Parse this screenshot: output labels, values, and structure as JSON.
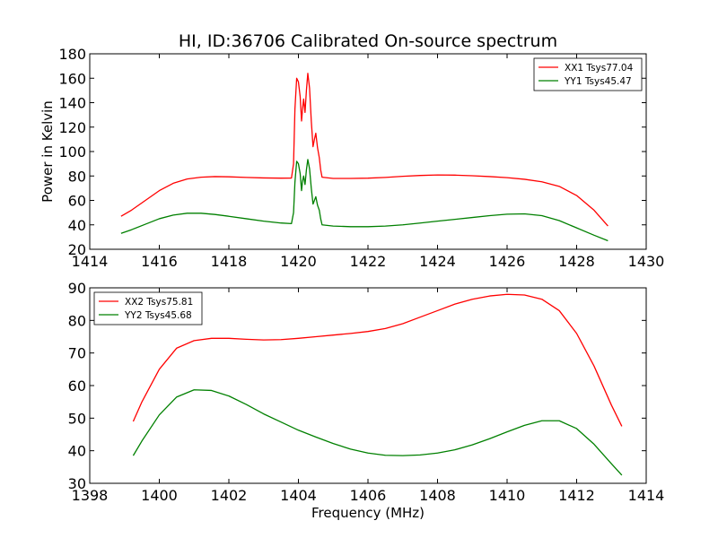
{
  "chart_data": [
    {
      "type": "line",
      "title": "HI, ID:36706 Calibrated On-source spectrum",
      "xlabel": "",
      "ylabel": "Power in Kelvin",
      "xlim": [
        1414,
        1430
      ],
      "ylim": [
        20,
        180
      ],
      "xticks": [
        1414,
        1416,
        1418,
        1420,
        1422,
        1424,
        1426,
        1428,
        1430
      ],
      "yticks": [
        20,
        40,
        60,
        80,
        100,
        120,
        140,
        160,
        180
      ],
      "legend_position": "top-right",
      "grid": false,
      "series": [
        {
          "name": "XX1 Tsys77.04",
          "color": "#ff0000",
          "points": [
            [
              1414.9,
              47
            ],
            [
              1415.2,
              52
            ],
            [
              1415.6,
              60
            ],
            [
              1416.0,
              68
            ],
            [
              1416.4,
              74
            ],
            [
              1416.8,
              77.5
            ],
            [
              1417.2,
              79
            ],
            [
              1417.6,
              79.5
            ],
            [
              1418.0,
              79.3
            ],
            [
              1418.5,
              78.8
            ],
            [
              1419.0,
              78.4
            ],
            [
              1419.5,
              78.2
            ],
            [
              1419.8,
              78.3
            ],
            [
              1419.86,
              90
            ],
            [
              1419.9,
              135
            ],
            [
              1419.95,
              160
            ],
            [
              1420.0,
              157
            ],
            [
              1420.05,
              145
            ],
            [
              1420.09,
              125
            ],
            [
              1420.12,
              135
            ],
            [
              1420.15,
              143
            ],
            [
              1420.19,
              132
            ],
            [
              1420.23,
              150
            ],
            [
              1420.27,
              164
            ],
            [
              1420.32,
              152
            ],
            [
              1420.37,
              125
            ],
            [
              1420.42,
              104
            ],
            [
              1420.46,
              110
            ],
            [
              1420.5,
              115
            ],
            [
              1420.55,
              103
            ],
            [
              1420.6,
              95
            ],
            [
              1420.64,
              85
            ],
            [
              1420.68,
              79
            ],
            [
              1421.0,
              78
            ],
            [
              1421.5,
              78
            ],
            [
              1422.0,
              78.2
            ],
            [
              1422.5,
              78.8
            ],
            [
              1423.0,
              79.7
            ],
            [
              1423.5,
              80.4
            ],
            [
              1424.0,
              80.8
            ],
            [
              1424.5,
              80.7
            ],
            [
              1425.0,
              80.2
            ],
            [
              1425.5,
              79.5
            ],
            [
              1426.0,
              78.6
            ],
            [
              1426.5,
              77.3
            ],
            [
              1427.0,
              75.2
            ],
            [
              1427.5,
              71.5
            ],
            [
              1428.0,
              64
            ],
            [
              1428.5,
              52
            ],
            [
              1428.9,
              39
            ]
          ]
        },
        {
          "name": "YY1 Tsys45.47",
          "color": "#008000",
          "points": [
            [
              1414.9,
              33
            ],
            [
              1415.2,
              36
            ],
            [
              1415.6,
              40.5
            ],
            [
              1416.0,
              45
            ],
            [
              1416.4,
              48
            ],
            [
              1416.8,
              49.5
            ],
            [
              1417.2,
              49.5
            ],
            [
              1417.6,
              48.5
            ],
            [
              1418.0,
              47
            ],
            [
              1418.5,
              45
            ],
            [
              1419.0,
              43
            ],
            [
              1419.5,
              41.5
            ],
            [
              1419.8,
              41
            ],
            [
              1419.86,
              50
            ],
            [
              1419.9,
              75
            ],
            [
              1419.95,
              92
            ],
            [
              1420.0,
              90
            ],
            [
              1420.05,
              82
            ],
            [
              1420.09,
              68
            ],
            [
              1420.12,
              76
            ],
            [
              1420.15,
              80
            ],
            [
              1420.19,
              73
            ],
            [
              1420.23,
              85
            ],
            [
              1420.27,
              93.5
            ],
            [
              1420.32,
              86
            ],
            [
              1420.37,
              70
            ],
            [
              1420.42,
              57
            ],
            [
              1420.46,
              60
            ],
            [
              1420.5,
              63
            ],
            [
              1420.55,
              56
            ],
            [
              1420.6,
              52
            ],
            [
              1420.64,
              45
            ],
            [
              1420.68,
              40
            ],
            [
              1421.0,
              39
            ],
            [
              1421.5,
              38.5
            ],
            [
              1422.0,
              38.5
            ],
            [
              1422.5,
              39
            ],
            [
              1423.0,
              40
            ],
            [
              1423.5,
              41.5
            ],
            [
              1424.0,
              43
            ],
            [
              1424.5,
              44.5
            ],
            [
              1425.0,
              46
            ],
            [
              1425.5,
              47.5
            ],
            [
              1426.0,
              48.7
            ],
            [
              1426.5,
              49
            ],
            [
              1427.0,
              47.5
            ],
            [
              1427.5,
              43.5
            ],
            [
              1428.0,
              37.5
            ],
            [
              1428.5,
              31.5
            ],
            [
              1428.9,
              27
            ]
          ]
        }
      ]
    },
    {
      "type": "line",
      "title": "",
      "xlabel": "Frequency (MHz)",
      "ylabel": "",
      "xlim": [
        1398,
        1414
      ],
      "ylim": [
        30,
        90
      ],
      "xticks": [
        1398,
        1400,
        1402,
        1404,
        1406,
        1408,
        1410,
        1412,
        1414
      ],
      "yticks": [
        30,
        40,
        50,
        60,
        70,
        80,
        90
      ],
      "legend_position": "top-left",
      "grid": false,
      "series": [
        {
          "name": "XX2 Tsys75.81",
          "color": "#ff0000",
          "points": [
            [
              1399.25,
              49
            ],
            [
              1399.5,
              55
            ],
            [
              1400.0,
              65
            ],
            [
              1400.5,
              71.5
            ],
            [
              1401.0,
              73.8
            ],
            [
              1401.5,
              74.5
            ],
            [
              1402.0,
              74.5
            ],
            [
              1402.5,
              74.2
            ],
            [
              1403.0,
              74
            ],
            [
              1403.5,
              74.1
            ],
            [
              1404.0,
              74.5
            ],
            [
              1404.5,
              75
            ],
            [
              1405.0,
              75.5
            ],
            [
              1405.5,
              76
            ],
            [
              1406.0,
              76.6
            ],
            [
              1406.5,
              77.5
            ],
            [
              1407.0,
              79
            ],
            [
              1407.5,
              81
            ],
            [
              1408.0,
              83
            ],
            [
              1408.5,
              85
            ],
            [
              1409.0,
              86.5
            ],
            [
              1409.5,
              87.5
            ],
            [
              1410.0,
              88
            ],
            [
              1410.5,
              87.8
            ],
            [
              1411.0,
              86.5
            ],
            [
              1411.5,
              83
            ],
            [
              1412.0,
              76
            ],
            [
              1412.5,
              66
            ],
            [
              1413.0,
              54
            ],
            [
              1413.3,
              47.5
            ]
          ]
        },
        {
          "name": "YY2 Tsys45.68",
          "color": "#008000",
          "points": [
            [
              1399.25,
              38.5
            ],
            [
              1399.5,
              43
            ],
            [
              1400.0,
              51
            ],
            [
              1400.5,
              56.5
            ],
            [
              1401.0,
              58.7
            ],
            [
              1401.5,
              58.5
            ],
            [
              1402.0,
              56.8
            ],
            [
              1402.5,
              54.2
            ],
            [
              1403.0,
              51.3
            ],
            [
              1403.5,
              48.8
            ],
            [
              1404.0,
              46.3
            ],
            [
              1404.5,
              44.2
            ],
            [
              1405.0,
              42.2
            ],
            [
              1405.5,
              40.5
            ],
            [
              1406.0,
              39.3
            ],
            [
              1406.5,
              38.6
            ],
            [
              1407.0,
              38.5
            ],
            [
              1407.5,
              38.7
            ],
            [
              1408.0,
              39.3
            ],
            [
              1408.5,
              40.3
            ],
            [
              1409.0,
              41.8
            ],
            [
              1409.5,
              43.7
            ],
            [
              1410.0,
              45.8
            ],
            [
              1410.5,
              47.8
            ],
            [
              1411.0,
              49.2
            ],
            [
              1411.5,
              49.2
            ],
            [
              1412.0,
              46.8
            ],
            [
              1412.5,
              42
            ],
            [
              1413.0,
              36
            ],
            [
              1413.3,
              32.5
            ]
          ]
        }
      ]
    }
  ]
}
